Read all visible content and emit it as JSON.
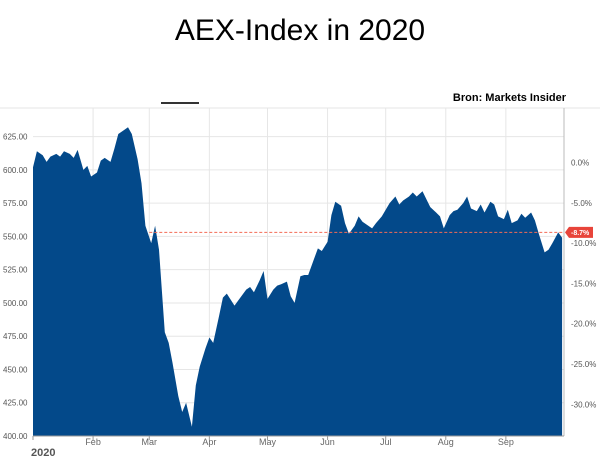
{
  "page_title": "AEX-Index in 2020",
  "source": "Bron: Markets Insider",
  "colors": {
    "area": "#03498a",
    "grid": "#e6e6e6",
    "reference": "#f26b55",
    "badge": "#e8443a"
  },
  "chart_data": {
    "type": "area",
    "title": "AEX-Index in 2020",
    "ylim": [
      400,
      645
    ],
    "y_ticks": [
      "625.00",
      "600.00",
      "575.00",
      "550.00",
      "525.00",
      "500.00",
      "475.00",
      "450.00",
      "425.00",
      "400.00"
    ],
    "y_tick_values": [
      625,
      600,
      575,
      550,
      525,
      500,
      475,
      450,
      425,
      400
    ],
    "y2_ticks": [
      "0.0%",
      "-5.0%",
      "-10.0%",
      "-15.0%",
      "-20.0%",
      "-25.0%",
      "-30.0%"
    ],
    "y2_tick_values": [
      0,
      -5,
      -10,
      -15,
      -20,
      -25,
      -30
    ],
    "x_range": [
      "2020-01-01",
      "2020-10-01"
    ],
    "months": [
      {
        "label": "2020",
        "date": "2020-01-01"
      },
      {
        "label": "Feb",
        "date": "2020-02-01"
      },
      {
        "label": "Mar",
        "date": "2020-03-01"
      },
      {
        "label": "Apr",
        "date": "2020-04-01"
      },
      {
        "label": "May",
        "date": "2020-05-01"
      },
      {
        "label": "Jun",
        "date": "2020-06-01"
      },
      {
        "label": "Jul",
        "date": "2020-07-01"
      },
      {
        "label": "Aug",
        "date": "2020-08-01"
      },
      {
        "label": "Sep",
        "date": "2020-09-01"
      }
    ],
    "reference_line": {
      "value": 553,
      "label": "-8.7%"
    },
    "grid": true,
    "series": [
      {
        "values": [
          [
            "2020-01-01",
            602
          ],
          [
            "2020-01-03",
            614
          ],
          [
            "2020-01-06",
            611
          ],
          [
            "2020-01-08",
            606
          ],
          [
            "2020-01-10",
            610
          ],
          [
            "2020-01-13",
            612
          ],
          [
            "2020-01-15",
            610
          ],
          [
            "2020-01-17",
            614
          ],
          [
            "2020-01-20",
            612
          ],
          [
            "2020-01-22",
            609
          ],
          [
            "2020-01-24",
            615
          ],
          [
            "2020-01-27",
            600
          ],
          [
            "2020-01-29",
            603
          ],
          [
            "2020-01-31",
            595
          ],
          [
            "2020-02-03",
            598
          ],
          [
            "2020-02-05",
            607
          ],
          [
            "2020-02-07",
            609
          ],
          [
            "2020-02-10",
            606
          ],
          [
            "2020-02-12",
            616
          ],
          [
            "2020-02-14",
            627
          ],
          [
            "2020-02-17",
            630
          ],
          [
            "2020-02-19",
            632
          ],
          [
            "2020-02-21",
            627
          ],
          [
            "2020-02-24",
            608
          ],
          [
            "2020-02-26",
            590
          ],
          [
            "2020-02-28",
            558
          ],
          [
            "2020-03-02",
            545
          ],
          [
            "2020-03-04",
            558
          ],
          [
            "2020-03-06",
            540
          ],
          [
            "2020-03-09",
            478
          ],
          [
            "2020-03-11",
            470
          ],
          [
            "2020-03-13",
            455
          ],
          [
            "2020-03-16",
            430
          ],
          [
            "2020-03-18",
            418
          ],
          [
            "2020-03-20",
            425
          ],
          [
            "2020-03-23",
            407
          ],
          [
            "2020-03-25",
            438
          ],
          [
            "2020-03-27",
            452
          ],
          [
            "2020-03-30",
            466
          ],
          [
            "2020-04-01",
            474
          ],
          [
            "2020-04-03",
            470
          ],
          [
            "2020-04-06",
            490
          ],
          [
            "2020-04-08",
            504
          ],
          [
            "2020-04-10",
            507
          ],
          [
            "2020-04-14",
            498
          ],
          [
            "2020-04-16",
            502
          ],
          [
            "2020-04-20",
            510
          ],
          [
            "2020-04-22",
            512
          ],
          [
            "2020-04-24",
            508
          ],
          [
            "2020-04-27",
            517
          ],
          [
            "2020-04-29",
            524
          ],
          [
            "2020-05-01",
            503
          ],
          [
            "2020-05-04",
            510
          ],
          [
            "2020-05-06",
            513
          ],
          [
            "2020-05-08",
            514
          ],
          [
            "2020-05-11",
            516
          ],
          [
            "2020-05-13",
            505
          ],
          [
            "2020-05-15",
            500
          ],
          [
            "2020-05-18",
            520
          ],
          [
            "2020-05-20",
            521
          ],
          [
            "2020-05-22",
            521
          ],
          [
            "2020-05-25",
            533
          ],
          [
            "2020-05-27",
            541
          ],
          [
            "2020-05-29",
            539
          ],
          [
            "2020-06-01",
            546
          ],
          [
            "2020-06-03",
            566
          ],
          [
            "2020-06-05",
            576
          ],
          [
            "2020-06-08",
            573
          ],
          [
            "2020-06-10",
            560
          ],
          [
            "2020-06-12",
            552
          ],
          [
            "2020-06-15",
            558
          ],
          [
            "2020-06-17",
            565
          ],
          [
            "2020-06-19",
            561
          ],
          [
            "2020-06-22",
            558
          ],
          [
            "2020-06-24",
            556
          ],
          [
            "2020-06-26",
            560
          ],
          [
            "2020-06-29",
            565
          ],
          [
            "2020-07-01",
            570
          ],
          [
            "2020-07-03",
            575
          ],
          [
            "2020-07-06",
            580
          ],
          [
            "2020-07-08",
            574
          ],
          [
            "2020-07-10",
            577
          ],
          [
            "2020-07-13",
            580
          ],
          [
            "2020-07-15",
            583
          ],
          [
            "2020-07-17",
            580
          ],
          [
            "2020-07-20",
            584
          ],
          [
            "2020-07-22",
            578
          ],
          [
            "2020-07-24",
            572
          ],
          [
            "2020-07-27",
            568
          ],
          [
            "2020-07-29",
            565
          ],
          [
            "2020-07-31",
            556
          ],
          [
            "2020-08-03",
            566
          ],
          [
            "2020-08-05",
            569
          ],
          [
            "2020-08-07",
            570
          ],
          [
            "2020-08-10",
            575
          ],
          [
            "2020-08-12",
            580
          ],
          [
            "2020-08-14",
            571
          ],
          [
            "2020-08-17",
            569
          ],
          [
            "2020-08-19",
            574
          ],
          [
            "2020-08-21",
            568
          ],
          [
            "2020-08-24",
            576
          ],
          [
            "2020-08-26",
            574
          ],
          [
            "2020-08-28",
            565
          ],
          [
            "2020-08-31",
            563
          ],
          [
            "2020-09-02",
            570
          ],
          [
            "2020-09-04",
            560
          ],
          [
            "2020-09-07",
            562
          ],
          [
            "2020-09-09",
            567
          ],
          [
            "2020-09-11",
            564
          ],
          [
            "2020-09-14",
            568
          ],
          [
            "2020-09-16",
            562
          ],
          [
            "2020-09-18",
            552
          ],
          [
            "2020-09-21",
            538
          ],
          [
            "2020-09-23",
            540
          ],
          [
            "2020-09-25",
            545
          ],
          [
            "2020-09-28",
            553
          ],
          [
            "2020-09-30",
            549
          ]
        ]
      }
    ]
  }
}
